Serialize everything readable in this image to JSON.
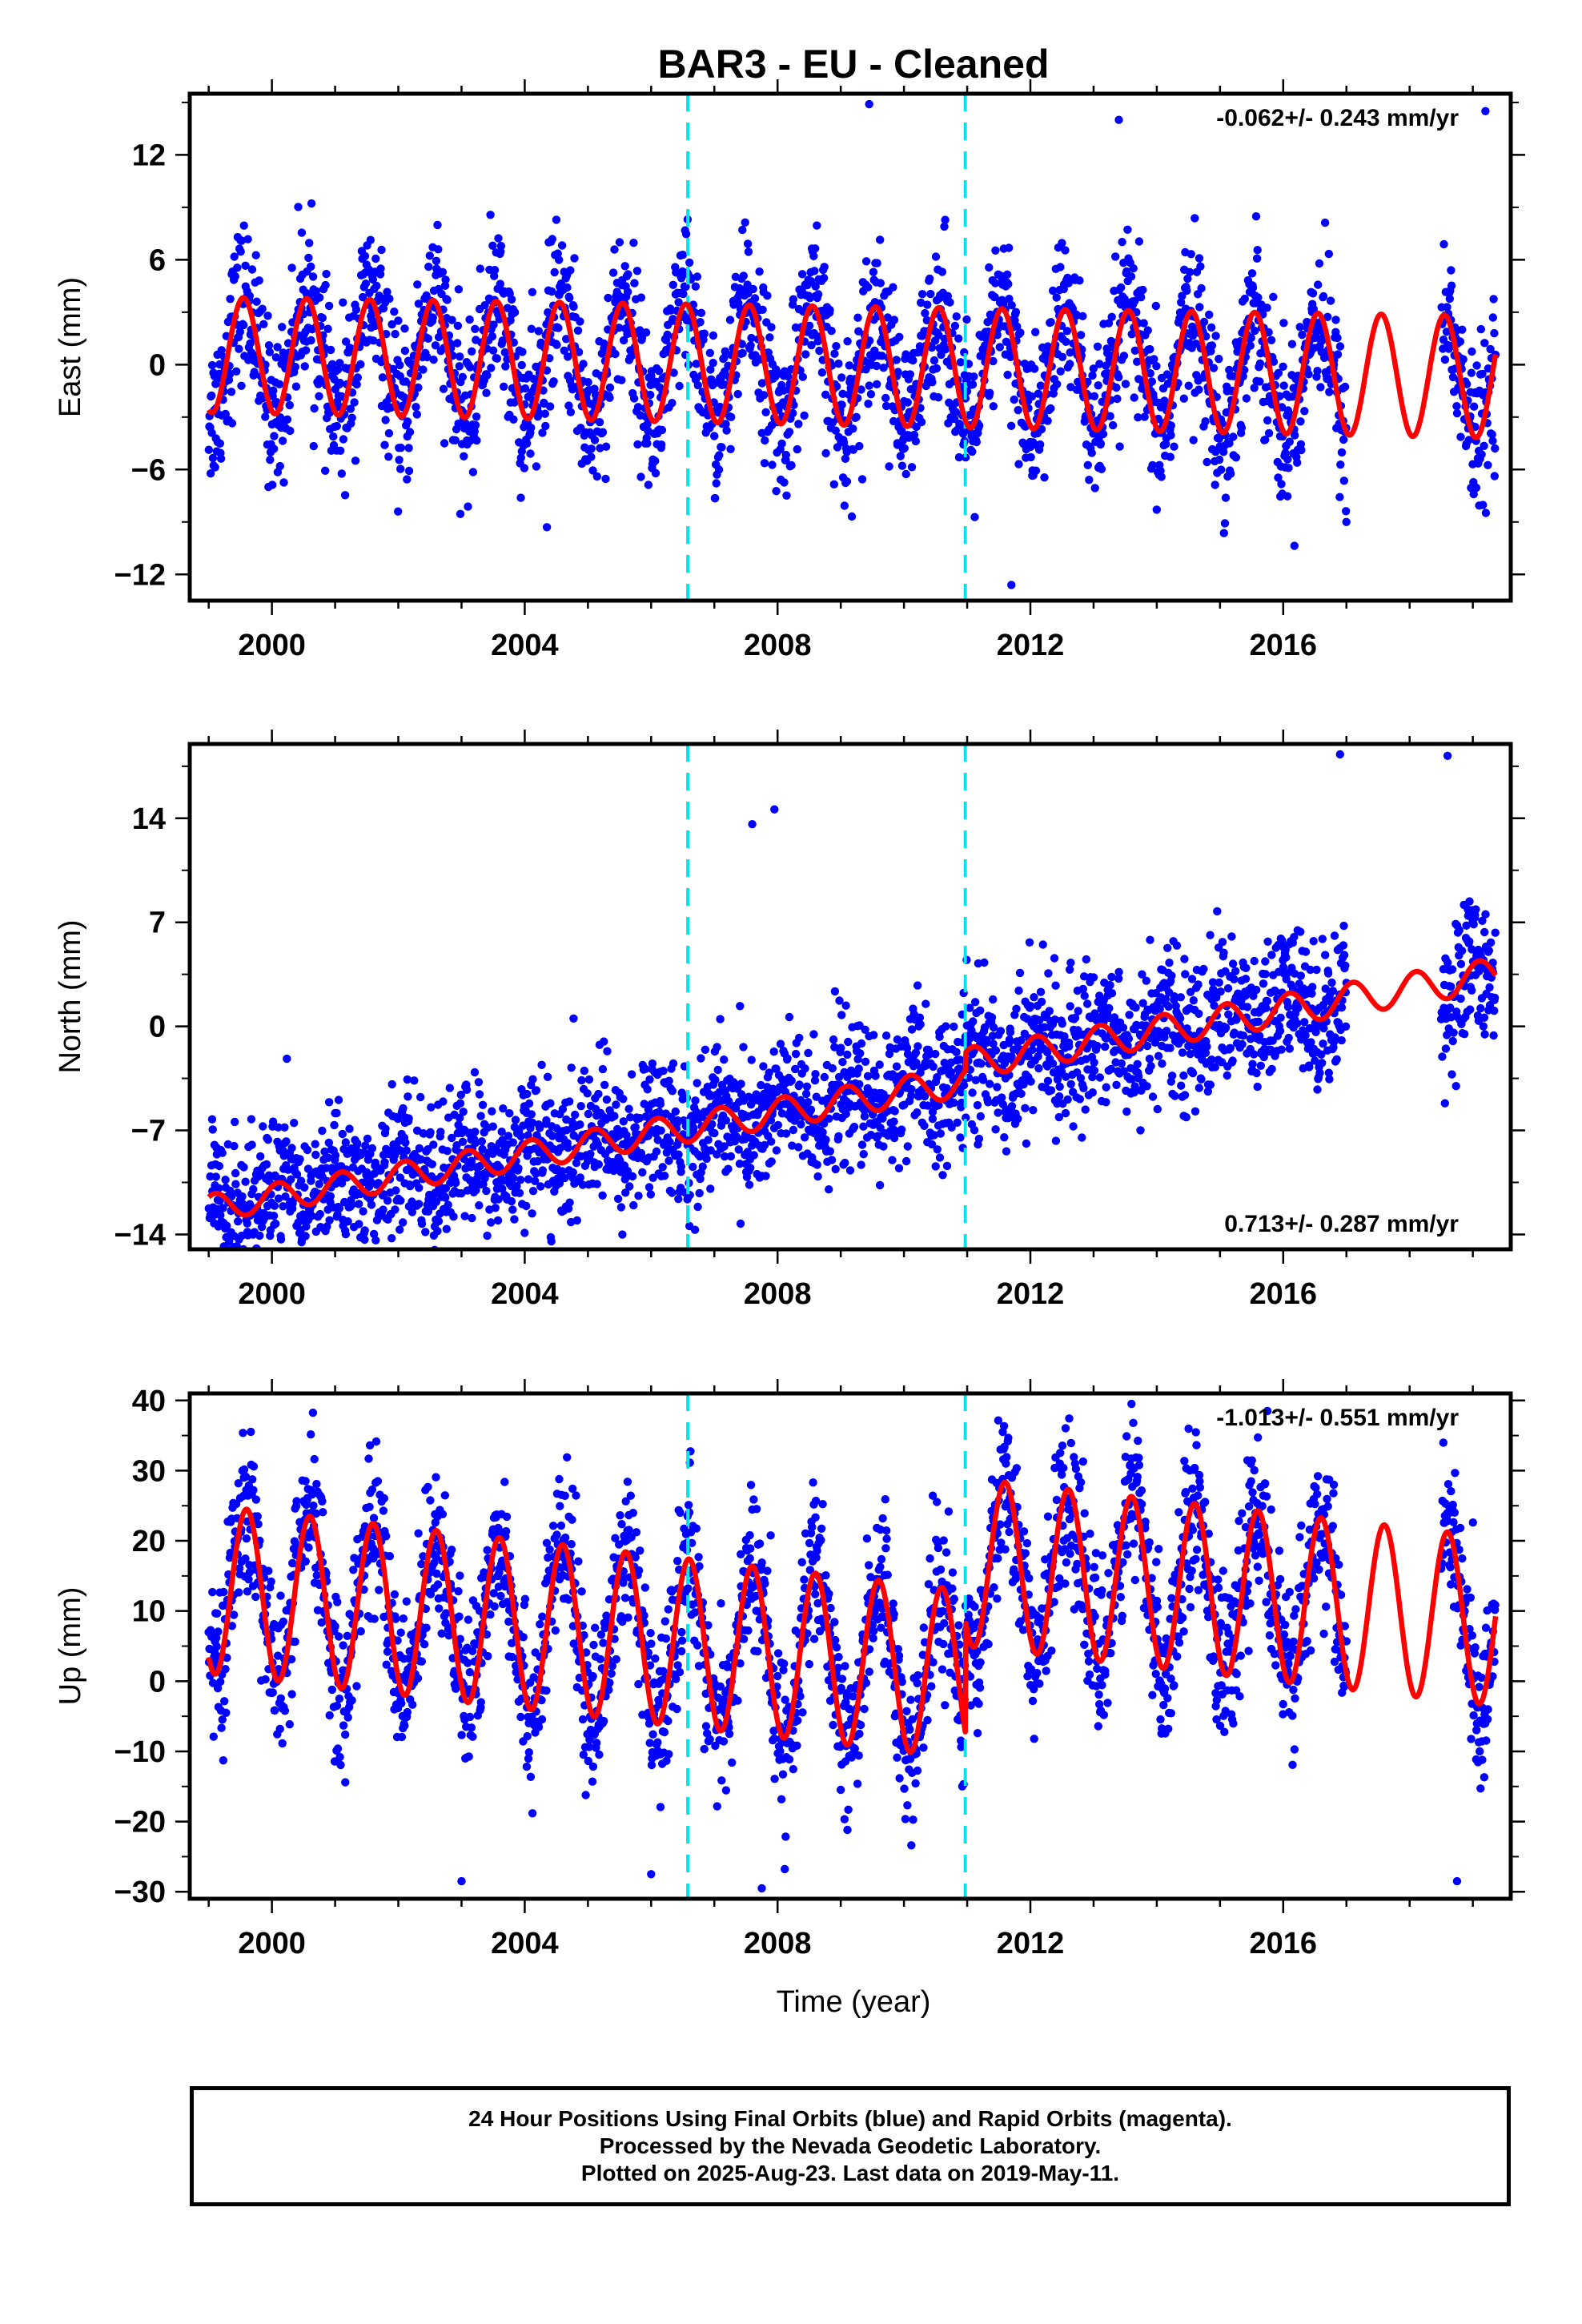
{
  "title": "BAR3  - EU - Cleaned",
  "colors": {
    "final_orbits": "#0000ff",
    "model": "#ff0000",
    "offsets": "#00e5ee",
    "frame": "#000000"
  },
  "footer": {
    "line1": "24 Hour Positions Using Final Orbits (blue) and Rapid Orbits (magenta).",
    "line2": "Processed by the Nevada Geodetic Laboratory.",
    "line3": "Plotted on 2025-Aug-23. Last data on 2019-May-11."
  },
  "chart_data": [
    {
      "type": "scatter",
      "title": "",
      "ylabel": "East (mm)",
      "xlabel": "",
      "rate_label": "-0.062+/- 0.243 mm/yr",
      "rate_position": "top-right",
      "xlim": [
        1998.7,
        2019.6
      ],
      "ylim": [
        -13.5,
        15.5
      ],
      "x_ticks": [
        2000,
        2004,
        2008,
        2012,
        2016
      ],
      "y_ticks": [
        -12,
        -6,
        0,
        6,
        12
      ],
      "offset_lines_x": [
        2006.58,
        2010.97
      ],
      "model": {
        "mean": 0.0,
        "trend_per_year": -0.062,
        "annual_amplitude_start": 3.3,
        "annual_amplitude_end": 3.5,
        "peak_phase_year_fraction": 0.55
      },
      "observations": {
        "noise": 2.2,
        "segments": [
          [
            1999.0,
            2017.0
          ],
          [
            2018.5,
            2019.36
          ]
        ],
        "outliers": [
          [
            2009.45,
            14.9
          ],
          [
            2011.7,
            -12.6
          ],
          [
            2004.35,
            -9.3
          ],
          [
            2013.4,
            14.0
          ],
          [
            2019.2,
            14.5
          ],
          [
            2017.0,
            -9.0
          ]
        ]
      },
      "series": [
        {
          "values_ref": "observations"
        },
        {
          "values_ref": "model"
        }
      ]
    },
    {
      "type": "scatter",
      "title": "",
      "ylabel": "North (mm)",
      "xlabel": "",
      "rate_label": "0.713+/- 0.287 mm/yr",
      "rate_position": "bottom-right",
      "xlim": [
        1998.7,
        2019.6
      ],
      "ylim": [
        -15.0,
        19.0
      ],
      "x_ticks": [
        2000,
        2004,
        2008,
        2012,
        2016
      ],
      "y_ticks": [
        -14,
        -7,
        0,
        7,
        14
      ],
      "offset_lines_x": [
        2006.58,
        2010.97
      ],
      "model": {
        "mean": -5.8,
        "trend_per_year": 0.713,
        "annual_amplitude_start": 0.9,
        "annual_amplitude_end": 1.1,
        "peak_phase_year_fraction": 0.1,
        "step_at": 2010.97,
        "step_size": 1.2
      },
      "observations": {
        "noise": 2.4,
        "segments": [
          [
            1999.0,
            2017.0
          ],
          [
            2018.5,
            2019.36
          ]
        ],
        "outliers": [
          [
            2016.9,
            18.3
          ],
          [
            2018.6,
            18.2
          ],
          [
            2007.95,
            14.6
          ],
          [
            1999.4,
            -14.1
          ],
          [
            2001.4,
            -14.2
          ],
          [
            2007.6,
            13.6
          ]
        ]
      },
      "series": [
        {
          "values_ref": "observations"
        },
        {
          "values_ref": "model"
        }
      ]
    },
    {
      "type": "scatter",
      "title": "",
      "ylabel": "Up (mm)",
      "xlabel": "Time (year)",
      "rate_label": "-1.013+/- 0.551 mm/yr",
      "rate_position": "top-right",
      "xlim": [
        1998.7,
        2019.6
      ],
      "ylim": [
        -31.0,
        41.0
      ],
      "x_ticks": [
        2000,
        2004,
        2008,
        2012,
        2016
      ],
      "y_ticks": [
        -30,
        -20,
        -10,
        0,
        10,
        20,
        30,
        40
      ],
      "offset_lines_x": [
        2006.58,
        2010.97
      ],
      "model": {
        "mean": 4.0,
        "trend_per_year": -1.013,
        "annual_amplitude_start": 12.0,
        "annual_amplitude_end": 12.0,
        "peak_phase_year_fraction": 0.6,
        "step_at": 2010.97,
        "step_size": 16.0
      },
      "observations": {
        "noise": 5.5,
        "segments": [
          [
            1999.0,
            2017.0
          ],
          [
            2018.5,
            2019.36
          ]
        ],
        "outliers": [
          [
            2013.6,
            39.5
          ],
          [
            2015.75,
            38.5
          ],
          [
            2007.75,
            -29.5
          ],
          [
            2018.75,
            -28.5
          ],
          [
            2003.0,
            -28.5
          ],
          [
            2006.0,
            -27.5
          ]
        ]
      },
      "series": [
        {
          "values_ref": "observations"
        },
        {
          "values_ref": "model"
        }
      ]
    }
  ]
}
